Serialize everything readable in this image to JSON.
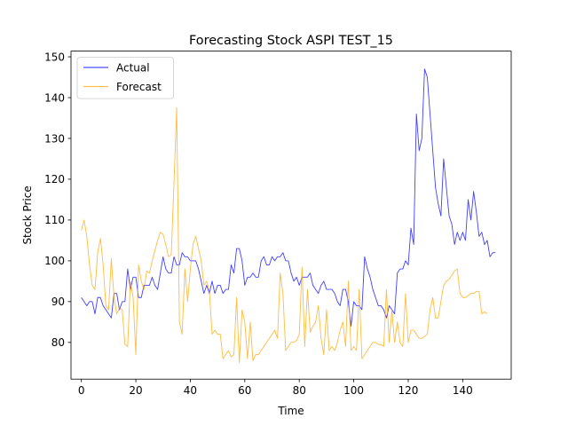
{
  "chart_data": {
    "type": "line",
    "title": "Forecasting Stock ASPI TEST_15",
    "xlabel": "Time",
    "ylabel": "Stock Price",
    "xlim": [
      -3.8,
      157.8
    ],
    "ylim": [
      71.0,
      151.4
    ],
    "xticks": [
      0,
      20,
      40,
      60,
      80,
      100,
      120,
      140
    ],
    "yticks": [
      80,
      90,
      100,
      110,
      120,
      130,
      140,
      150
    ],
    "grid": false,
    "legend_position": "top-left",
    "series": [
      {
        "name": "Actual",
        "color": "#0000ff",
        "values": [
          91.0,
          90.0,
          89.0,
          90.0,
          90.0,
          87.0,
          91.0,
          91.0,
          89.0,
          88.0,
          87.0,
          86.0,
          92.0,
          92.0,
          88.0,
          90.0,
          90.0,
          98.0,
          93.0,
          96.0,
          96.0,
          91.0,
          91.0,
          94.0,
          94.0,
          94.0,
          96.0,
          94.0,
          93.0,
          97.0,
          101.0,
          98.0,
          97.0,
          97.0,
          101.0,
          99.0,
          99.0,
          102.0,
          101.0,
          101.0,
          100.0,
          100.0,
          100.0,
          98.0,
          95.0,
          92.0,
          94.0,
          92.0,
          95.0,
          92.0,
          94.0,
          94.0,
          92.0,
          93.0,
          93.0,
          99.0,
          97.0,
          103.0,
          103.0,
          100.0,
          94.0,
          96.0,
          96.0,
          97.0,
          96.0,
          96.0,
          100.0,
          101.0,
          99.0,
          99.0,
          101.0,
          100.0,
          101.0,
          101.0,
          102.0,
          100.0,
          100.0,
          97.0,
          95.0,
          96.0,
          94.0,
          96.0,
          96.0,
          96.0,
          97.0,
          94.0,
          93.0,
          92.0,
          94.0,
          95.0,
          93.0,
          93.0,
          93.0,
          92.0,
          90.0,
          89.0,
          93.0,
          93.0,
          90.0,
          84.0,
          90.0,
          89.0,
          89.0,
          88.0,
          101.0,
          98.0,
          96.0,
          93.0,
          91.0,
          89.0,
          89.0,
          88.0,
          86.0,
          89.0,
          88.0,
          87.0,
          97.0,
          98.0,
          98.0,
          100.0,
          99.0,
          108.0,
          104.0,
          136.0,
          127.0,
          130.0,
          147.0,
          145.0,
          136.0,
          127.0,
          118.0,
          114.0,
          111.0,
          125.0,
          118.0,
          111.0,
          109.0,
          104.0,
          107.0,
          105.0,
          107.0,
          105.0,
          115.0,
          110.0,
          117.0,
          112.0,
          106.0,
          107.0,
          104.0,
          105.0,
          101.0,
          102.0,
          102.0
        ]
      },
      {
        "name": "Forecast",
        "color": "#ffa500",
        "values": [
          107.5,
          110.0,
          106.0,
          99.0,
          94.0,
          93.0,
          102.0,
          105.5,
          99.0,
          89.0,
          88.0,
          100.5,
          91.0,
          87.0,
          88.5,
          88.0,
          79.5,
          79.0,
          95.0,
          91.0,
          77.0,
          99.0,
          95.0,
          93.0,
          97.5,
          97.0,
          100.0,
          102.5,
          105.0,
          107.0,
          106.5,
          104.0,
          101.0,
          101.5,
          119.0,
          137.5,
          85.0,
          82.0,
          98.0,
          90.0,
          98.0,
          104.0,
          106.0,
          103.0,
          100.0,
          94.0,
          95.0,
          92.5,
          82.0,
          83.0,
          82.0,
          82.0,
          76.0,
          77.0,
          78.0,
          76.5,
          77.0,
          91.0,
          75.0,
          88.0,
          85.0,
          76.0,
          85.0,
          75.5,
          77.0,
          77.0,
          78.0,
          79.0,
          80.0,
          81.0,
          82.0,
          83.0,
          81.0,
          97.0,
          92.0,
          78.0,
          79.0,
          80.0,
          80.0,
          80.5,
          82.0,
          98.5,
          79.0,
          93.0,
          82.5,
          84.0,
          85.0,
          89.0,
          81.0,
          77.0,
          88.0,
          78.0,
          79.0,
          78.0,
          80.0,
          83.0,
          85.0,
          79.0,
          95.0,
          78.0,
          79.0,
          78.0,
          93.0,
          76.0,
          77.0,
          78.0,
          79.0,
          80.0,
          80.0,
          79.5,
          79.5,
          79.0,
          93.0,
          80.0,
          88.0,
          80.0,
          85.0,
          80.0,
          79.0,
          92.0,
          80.0,
          83.0,
          83.0,
          82.0,
          81.0,
          81.0,
          81.5,
          82.0,
          88.0,
          91.0,
          86.0,
          86.0,
          90.0,
          94.0,
          95.0,
          95.5,
          96.5,
          97.5,
          98.0,
          92.0,
          91.0,
          91.0,
          91.5,
          92.0,
          92.0,
          92.5,
          92.5,
          87.0,
          87.5,
          87.0
        ]
      }
    ]
  }
}
